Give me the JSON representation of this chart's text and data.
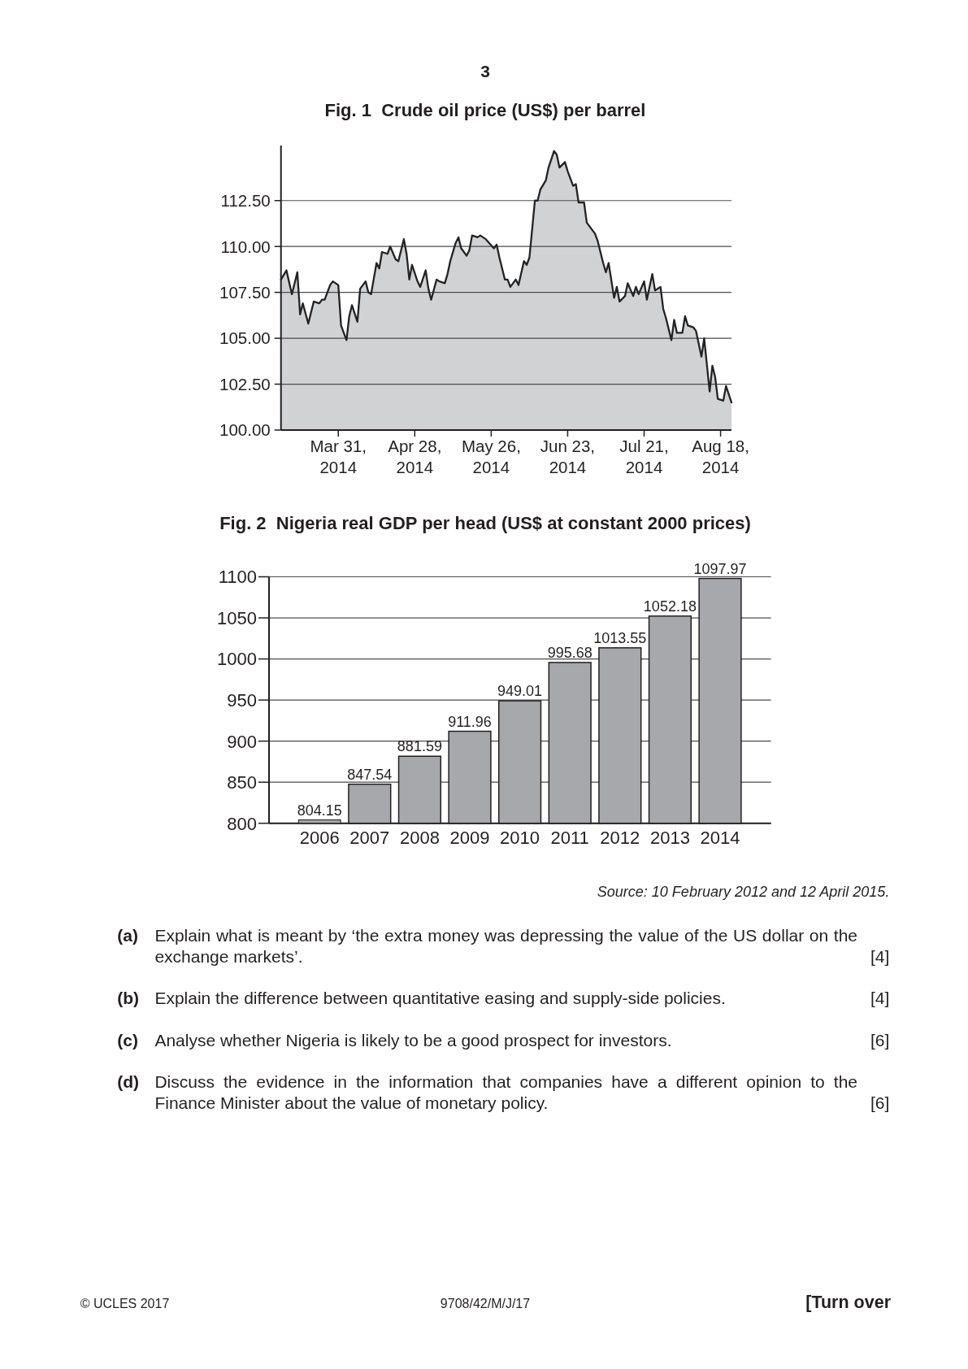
{
  "chart_data": [
    {
      "type": "area",
      "title": "Fig. 1  Crude oil price (US$) per barrel",
      "annotations": [
        "3"
      ],
      "x": [
        "2014-03-10",
        "2014-03-12",
        "2014-03-14",
        "2014-03-16",
        "2014-03-17",
        "2014-03-18",
        "2014-03-20",
        "2014-03-22",
        "2014-03-24",
        "2014-03-25",
        "2014-03-26",
        "2014-03-28",
        "2014-03-29",
        "2014-03-31",
        "2014-04-01",
        "2014-04-03",
        "2014-04-04",
        "2014-04-05",
        "2014-04-07",
        "2014-04-08",
        "2014-04-10",
        "2014-04-11",
        "2014-04-12",
        "2014-04-14",
        "2014-04-15",
        "2014-04-16",
        "2014-04-18",
        "2014-04-19",
        "2014-04-21",
        "2014-04-22",
        "2014-04-24",
        "2014-04-25",
        "2014-04-26",
        "2014-04-27",
        "2014-04-29",
        "2014-04-30",
        "2014-05-02",
        "2014-05-03",
        "2014-05-04",
        "2014-05-06",
        "2014-05-07",
        "2014-05-09",
        "2014-05-10",
        "2014-05-11",
        "2014-05-13",
        "2014-05-14",
        "2014-05-15",
        "2014-05-17",
        "2014-05-18",
        "2014-05-19",
        "2014-05-21",
        "2014-05-22",
        "2014-05-24",
        "2014-05-27",
        "2014-05-28",
        "2014-05-29",
        "2014-05-31",
        "2014-06-01",
        "2014-06-02",
        "2014-06-04",
        "2014-06-05",
        "2014-06-07",
        "2014-06-08",
        "2014-06-09",
        "2014-06-11",
        "2014-06-12",
        "2014-06-13",
        "2014-06-15",
        "2014-06-16",
        "2014-06-18",
        "2014-06-19",
        "2014-06-20",
        "2014-06-22",
        "2014-06-23",
        "2014-06-25",
        "2014-06-26",
        "2014-06-27",
        "2014-06-29",
        "2014-06-30",
        "2014-07-01",
        "2014-07-03",
        "2014-07-04",
        "2014-07-06",
        "2014-07-07",
        "2014-07-08",
        "2014-07-10",
        "2014-07-11",
        "2014-07-12",
        "2014-07-14",
        "2014-07-15",
        "2014-07-17",
        "2014-07-18",
        "2014-07-19",
        "2014-07-21",
        "2014-07-22",
        "2014-07-24",
        "2014-07-25",
        "2014-07-27",
        "2014-07-28",
        "2014-07-29",
        "2014-07-31",
        "2014-08-01",
        "2014-08-02",
        "2014-08-04",
        "2014-08-05",
        "2014-08-06",
        "2014-08-08",
        "2014-08-09",
        "2014-08-11",
        "2014-08-12",
        "2014-08-14",
        "2014-08-15",
        "2014-08-16",
        "2014-08-17",
        "2014-08-19",
        "2014-08-20",
        "2014-08-22"
      ],
      "values": [
        108.2,
        108.7,
        107.4,
        108.6,
        106.3,
        106.9,
        105.8,
        107.0,
        106.9,
        107.1,
        107.1,
        107.9,
        108.1,
        107.9,
        105.7,
        104.9,
        106.2,
        106.8,
        105.9,
        107.7,
        108.1,
        107.5,
        107.4,
        109.1,
        108.8,
        109.7,
        109.6,
        110.0,
        109.3,
        109.2,
        110.4,
        109.6,
        108.2,
        109.0,
        108.1,
        107.8,
        108.7,
        107.7,
        107.1,
        108.2,
        108.1,
        108.0,
        108.5,
        109.2,
        110.2,
        110.5,
        109.9,
        109.5,
        109.8,
        110.6,
        110.5,
        110.6,
        110.4,
        109.9,
        110.1,
        109.4,
        108.2,
        108.2,
        107.8,
        108.2,
        107.9,
        109.2,
        109.0,
        109.4,
        112.5,
        112.5,
        113.1,
        113.6,
        114.3,
        115.2,
        115.0,
        114.3,
        114.6,
        114.1,
        113.3,
        113.4,
        112.4,
        112.4,
        111.3,
        111.1,
        110.7,
        110.3,
        109.1,
        108.6,
        109.1,
        107.2,
        107.8,
        107.0,
        107.3,
        108.0,
        107.3,
        107.8,
        107.4,
        108.1,
        107.1,
        108.5,
        107.6,
        107.8,
        106.6,
        106.1,
        104.9,
        106.0,
        105.3,
        105.3,
        106.2,
        105.7,
        105.6,
        105.4,
        104.0,
        105.0,
        102.1,
        103.5,
        102.9,
        101.7,
        101.6,
        102.4,
        101.5
      ],
      "color": "#d1d2d4",
      "xlim": [
        "2014-03-10",
        "2014-08-22"
      ],
      "ylim": [
        100,
        115.5
      ],
      "xticks": [
        {
          "value": "2014-03-31",
          "label": "Mar 31, 2014"
        },
        {
          "value": "2014-04-28",
          "label": "Apr 28, 2014"
        },
        {
          "value": "2014-05-26",
          "label": "May 26, 2014"
        },
        {
          "value": "2014-06-23",
          "label": "Jun 23, 2014"
        },
        {
          "value": "2014-07-21",
          "label": "Jul 21, 2014"
        },
        {
          "value": "2014-08-18",
          "label": "Aug 18, 2014"
        }
      ],
      "yticks": [
        {
          "value": 100,
          "label": "100.00"
        },
        {
          "value": 102.5,
          "label": "102.50"
        },
        {
          "value": 105,
          "label": "105.00"
        },
        {
          "value": 107.5,
          "label": "107.50"
        },
        {
          "value": 110,
          "label": "110.00"
        },
        {
          "value": 112.5,
          "label": "112.50"
        }
      ],
      "grid": "y"
    },
    {
      "type": "bar",
      "title": "Fig. 2  Nigeria real GDP per head (US$ at constant 2000 prices)",
      "categories": [
        "2006",
        "2007",
        "2008",
        "2009",
        "2010",
        "2011",
        "2012",
        "2013",
        "2014"
      ],
      "values": [
        804.15,
        847.54,
        881.59,
        911.96,
        949.01,
        995.68,
        1013.55,
        1052.18,
        1097.97
      ],
      "color": "#a7a8ab",
      "ylim": [
        800,
        1100
      ],
      "yticks": [
        800,
        850,
        900,
        950,
        1000,
        1050,
        1100
      ],
      "grid": "y",
      "data_labels": true,
      "annotations": [
        "Source: 10 February 2012 and 12 April 2015.",
        "(a)",
        "Explain what is meant by ‘the extra money was depressing the value of the US dollar on the exchange markets’.",
        "[4]",
        "(b)",
        "Explain the difference between quantitative easing and supply-side policies.",
        "[4]",
        "(c)",
        "Analyse whether Nigeria is likely to be a good prospect for investors.",
        "[6]",
        "(d)",
        "Discuss the evidence in the information that companies have a different opinion to the Finance Minister about the value of monetary policy.",
        "[6]",
        "© UCLES 2017",
        "9708/42/M/J/17",
        "[Turn over"
      ]
    }
  ]
}
